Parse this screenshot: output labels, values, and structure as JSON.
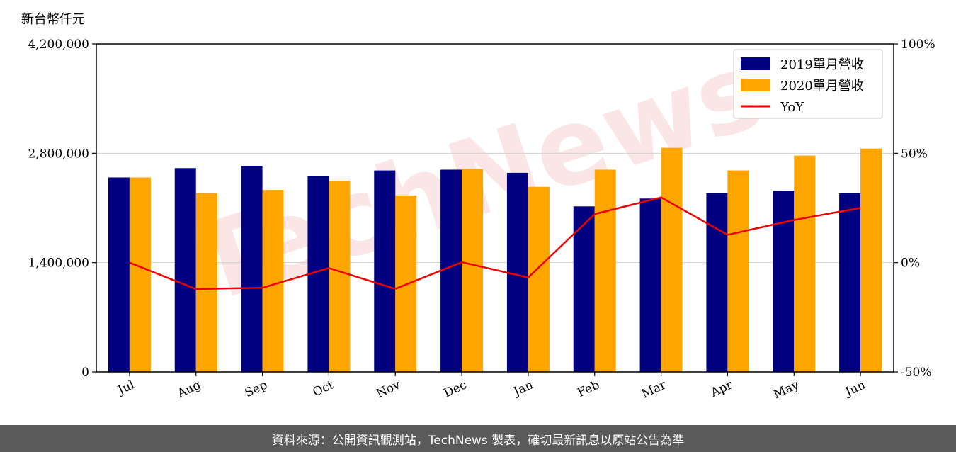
{
  "colors": {
    "series_2019": "#000080",
    "series_2020": "#FFA500",
    "yoy": "#EE0000",
    "watermark": "#F4C9C9",
    "footer_bg": "#5A5A5A",
    "grid": "#D0D0D0"
  },
  "watermark_text": "TechNews",
  "footer_text": "資料來源：公開資訊觀測站，TechNews 製表，確切最新訊息以原站公告為準",
  "chart_data": {
    "type": "bar",
    "unit_label": "新台幣仟元",
    "categories": [
      "Jul",
      "Aug",
      "Sep",
      "Oct",
      "Nov",
      "Dec",
      "Jan",
      "Feb",
      "Mar",
      "Apr",
      "May",
      "Jun"
    ],
    "series": [
      {
        "name": "2019單月營收",
        "type": "bar",
        "axis": "left",
        "values": [
          2490000,
          2610000,
          2640000,
          2510000,
          2580000,
          2590000,
          2550000,
          2120000,
          2220000,
          2290000,
          2320000,
          2290000
        ]
      },
      {
        "name": "2020單月營收",
        "type": "bar",
        "axis": "left",
        "values": [
          2490000,
          2290000,
          2330000,
          2450000,
          2260000,
          2600000,
          2370000,
          2590000,
          2870000,
          2580000,
          2770000,
          2860000
        ]
      },
      {
        "name": "YoY",
        "type": "line",
        "axis": "right",
        "values": [
          0.0,
          -12.1,
          -11.5,
          -2.5,
          -12.0,
          0.2,
          -6.8,
          22.2,
          29.8,
          12.7,
          19.5,
          25.0
        ]
      }
    ],
    "ylim_left": [
      0,
      4200000
    ],
    "yticks_left": [
      "0",
      "1,400,000",
      "2,800,000",
      "4,200,000"
    ],
    "ylim_right": [
      -50,
      100
    ],
    "yticks_right": [
      "-50%",
      "0%",
      "50%",
      "100%"
    ],
    "grid": "horizontal",
    "legend_position": "top-right"
  }
}
